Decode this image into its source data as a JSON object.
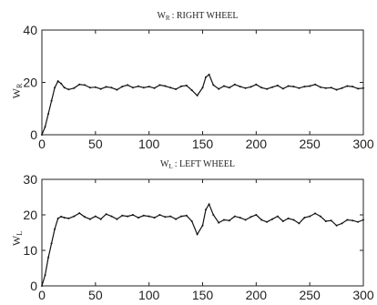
{
  "chart_data": [
    {
      "type": "line",
      "title": "W_R : RIGHT WHEEL",
      "ylabel": "W_R",
      "xlim": [
        0,
        300
      ],
      "ylim": [
        0,
        40
      ],
      "xticks": [
        0,
        50,
        100,
        150,
        200,
        250,
        300
      ],
      "yticks": [
        0,
        20,
        40
      ],
      "xtick_labels": [
        "0",
        "50",
        "100",
        "150",
        "200",
        "250",
        "300"
      ],
      "ytick_labels": [
        "0",
        "20",
        "40"
      ],
      "grid": false,
      "series": [
        {
          "x": [
            0,
            3,
            6,
            9,
            12,
            15,
            18,
            21,
            25,
            30,
            35,
            40,
            45,
            50,
            55,
            60,
            65,
            70,
            75,
            80,
            85,
            90,
            95,
            100,
            105,
            110,
            115,
            120,
            125,
            130,
            135,
            140,
            145,
            150,
            153,
            156,
            160,
            165,
            170,
            175,
            180,
            185,
            190,
            195,
            200,
            205,
            210,
            215,
            220,
            225,
            230,
            235,
            240,
            245,
            250,
            255,
            260,
            265,
            270,
            275,
            280,
            285,
            290,
            295,
            300
          ],
          "y": [
            0,
            3,
            8,
            13,
            18,
            20.5,
            19.5,
            18,
            17.3,
            17.8,
            19.2,
            19,
            18,
            18.2,
            17.5,
            18.3,
            18,
            17.2,
            18.4,
            19,
            18,
            18.5,
            18,
            18.4,
            17.8,
            19,
            18.6,
            18,
            17.4,
            18.5,
            18.8,
            17,
            15,
            18,
            22,
            23,
            19,
            17.5,
            18.6,
            18,
            19.2,
            18.4,
            17.8,
            18.3,
            19.2,
            18,
            17.5,
            18.2,
            18.8,
            17.6,
            18.6,
            18.4,
            17.8,
            18.4,
            18.6,
            19.2,
            18.2,
            17.8,
            18,
            17.2,
            17.8,
            18.6,
            18.4,
            17.6,
            17.8
          ]
        }
      ]
    },
    {
      "type": "line",
      "title": "W_L : LEFT WHEEL",
      "ylabel": "W_L",
      "xlim": [
        0,
        300
      ],
      "ylim": [
        0,
        30
      ],
      "xticks": [
        0,
        50,
        100,
        150,
        200,
        250,
        300
      ],
      "yticks": [
        0,
        10,
        20,
        30
      ],
      "xtick_labels": [
        "0",
        "50",
        "100",
        "150",
        "200",
        "250",
        "300"
      ],
      "ytick_labels": [
        "0",
        "10",
        "20",
        "30"
      ],
      "grid": false,
      "series": [
        {
          "x": [
            0,
            3,
            6,
            9,
            12,
            15,
            18,
            21,
            25,
            30,
            35,
            40,
            45,
            50,
            55,
            60,
            65,
            70,
            75,
            80,
            85,
            90,
            95,
            100,
            105,
            110,
            115,
            120,
            125,
            130,
            135,
            140,
            145,
            150,
            153,
            156,
            160,
            165,
            170,
            175,
            180,
            185,
            190,
            195,
            200,
            205,
            210,
            215,
            220,
            225,
            230,
            235,
            240,
            245,
            250,
            255,
            260,
            265,
            270,
            275,
            280,
            285,
            290,
            295,
            300
          ],
          "y": [
            0,
            3,
            8,
            12,
            16,
            19,
            19.5,
            19.2,
            19,
            19.6,
            20.5,
            19.4,
            18.8,
            19.6,
            18.8,
            20.2,
            19.6,
            18.8,
            19.8,
            19.6,
            20,
            19.2,
            19.8,
            19.6,
            19.2,
            20,
            19.4,
            19.6,
            18.8,
            19.6,
            19.8,
            18.2,
            14.5,
            17,
            21.5,
            23,
            20,
            17.8,
            18.6,
            18.4,
            19.6,
            19.2,
            18.6,
            19.4,
            20,
            18.6,
            18,
            18.8,
            19.6,
            18.2,
            19,
            18.6,
            17.6,
            19.2,
            19.6,
            20.4,
            19.6,
            18.2,
            18.4,
            17,
            17.6,
            18.6,
            18.4,
            18,
            18.6
          ]
        }
      ]
    }
  ],
  "panels": [
    {
      "title_main": "W",
      "title_sub": "R",
      "title_rest": ": RIGHT WHEEL",
      "ylabel_main": "W",
      "ylabel_sub": "R"
    },
    {
      "title_main": "W",
      "title_sub": "L",
      "title_rest": ": LEFT WHEEL",
      "ylabel_main": "W",
      "ylabel_sub": "L"
    }
  ],
  "colors": {
    "line": "#111111",
    "axes": "#222222",
    "background": "#ffffff"
  }
}
